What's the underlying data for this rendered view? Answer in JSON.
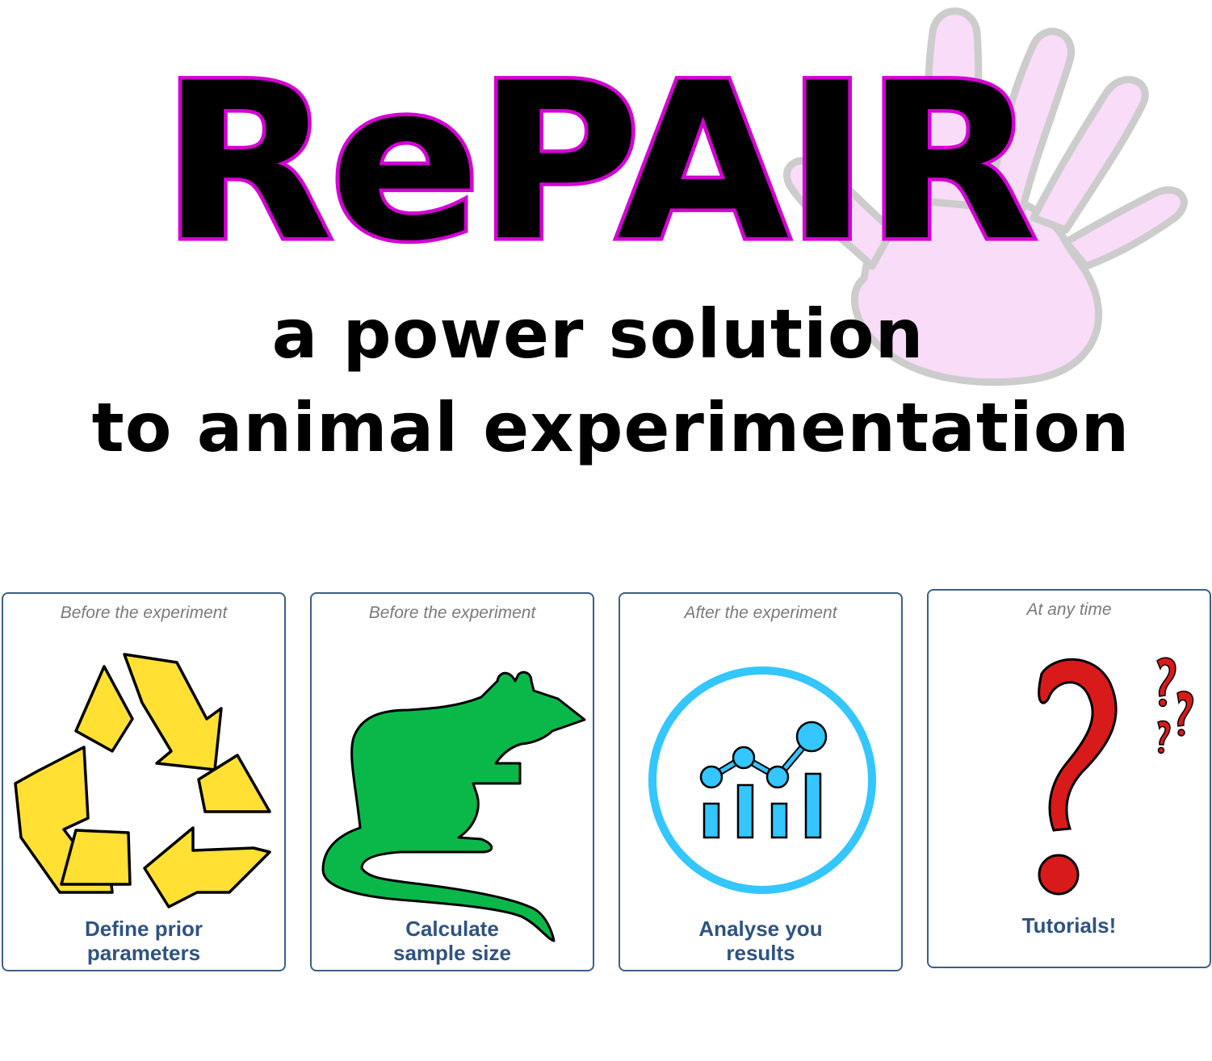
{
  "logo": {
    "title": "RePAIR",
    "title_fill": "#000000",
    "title_outline": "#d400d4",
    "hand_fill": "#f9dcf7",
    "hand_outline": "#cccccc"
  },
  "subtitle": {
    "line1": "a power solution",
    "line2": "to animal experimentation"
  },
  "cards": [
    {
      "when": "Before the experiment",
      "label_line1": "Define prior",
      "label_line2": "parameters",
      "icon": "recycle-icon"
    },
    {
      "when": "Before the experiment",
      "label_line1": "Calculate",
      "label_line2": "sample size",
      "icon": "rat-icon"
    },
    {
      "when": "After the experiment",
      "label_line1": "Analyse you",
      "label_line2": "results",
      "icon": "analytics-chart-icon"
    },
    {
      "when": "At any time",
      "label_line1": "Tutorials!",
      "label_line2": "",
      "icon": "question-mark-icon"
    }
  ],
  "colors": {
    "card_border": "#3e5f85",
    "card_label": "#2e5382",
    "card_when": "#7a7a7a",
    "recycle_yellow": "#ffe033",
    "rat_green": "#0ab84a",
    "chart_blue": "#33c6ff",
    "question_red": "#d91a1a"
  }
}
